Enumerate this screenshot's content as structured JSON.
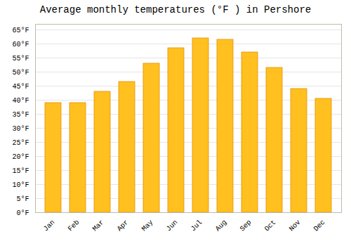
{
  "chart_data": {
    "type": "bar",
    "title": "Average monthly temperatures (°F ) in Pershore",
    "categories": [
      "Jan",
      "Feb",
      "Mar",
      "Apr",
      "May",
      "Jun",
      "Jul",
      "Aug",
      "Sep",
      "Oct",
      "Nov",
      "Dec"
    ],
    "values": [
      39,
      39,
      43,
      46.5,
      53,
      58.5,
      62,
      61.5,
      57,
      51.5,
      44,
      40.5
    ],
    "color": "#FFC020",
    "ylim": [
      0,
      67
    ],
    "yticks": [
      {
        "value": 0,
        "label": "0°F"
      },
      {
        "value": 5,
        "label": "5°F"
      },
      {
        "value": 10,
        "label": "10°F"
      },
      {
        "value": 15,
        "label": "15°F"
      },
      {
        "value": 20,
        "label": "20°F"
      },
      {
        "value": 25,
        "label": "25°F"
      },
      {
        "value": 30,
        "label": "30°F"
      },
      {
        "value": 35,
        "label": "35°F"
      },
      {
        "value": 40,
        "label": "40°F"
      },
      {
        "value": 45,
        "label": "45°F"
      },
      {
        "value": 50,
        "label": "50°F"
      },
      {
        "value": 55,
        "label": "55°F"
      },
      {
        "value": 60,
        "label": "60°F"
      },
      {
        "value": 65,
        "label": "65°F"
      }
    ],
    "grid": true
  }
}
